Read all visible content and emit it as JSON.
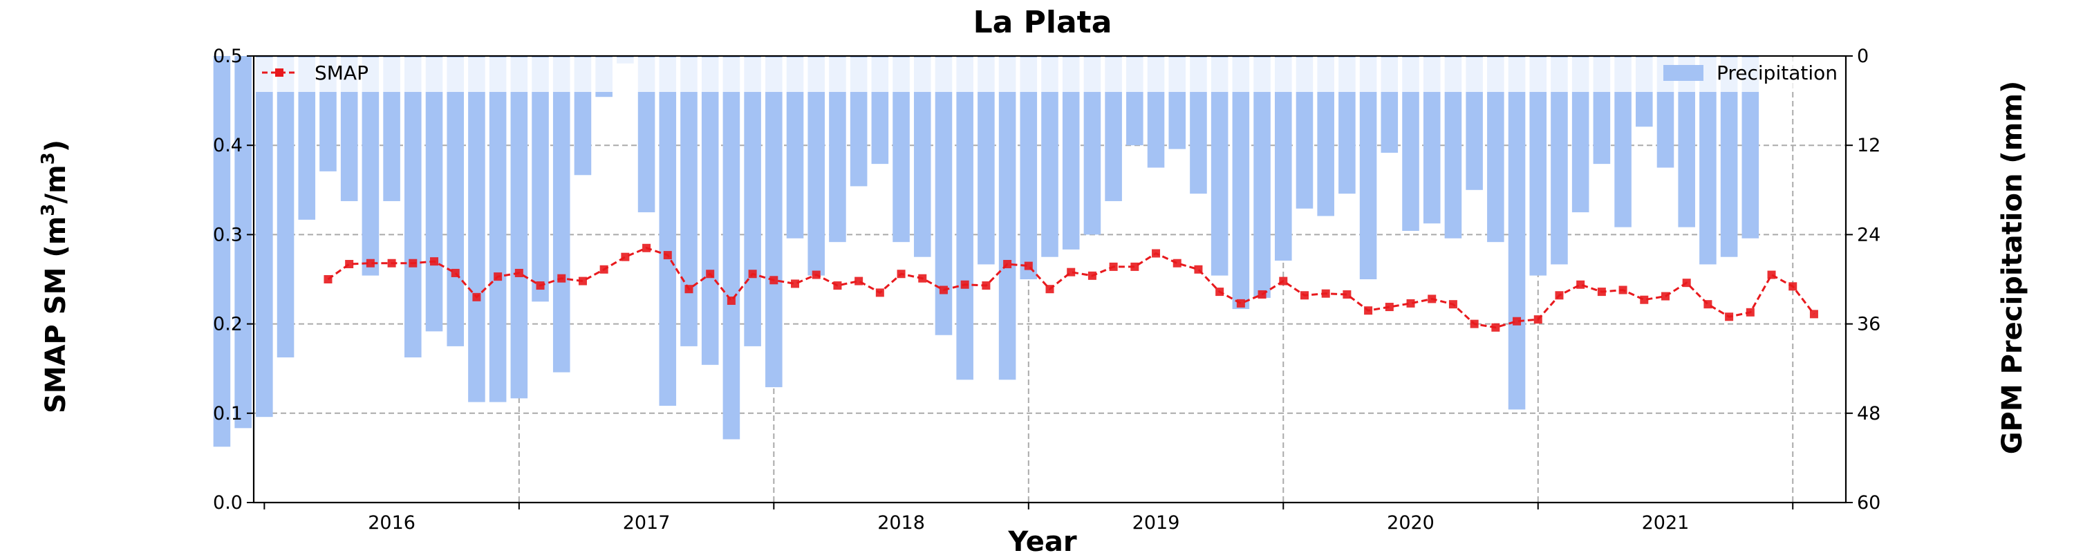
{
  "chart_data": {
    "type": "bar+line",
    "title": "La Plata",
    "xlabel": "Year",
    "ylabel_left_prefix": "SMAP SM (m",
    "ylabel_left_mid": "/m",
    "ylabel_left_suffix": ")",
    "ylabel_left_sup": "3",
    "ylabel_right": "GPM Precipitation (mm)",
    "year_labels": [
      "2016",
      "2017",
      "2018",
      "2019",
      "2020",
      "2021"
    ],
    "y_left_ticks": [
      "0.0",
      "0.1",
      "0.2",
      "0.3",
      "0.4",
      "0.5"
    ],
    "y_right_ticks": [
      "0",
      "12",
      "24",
      "36",
      "48",
      "60"
    ],
    "ylim_left": [
      0,
      0.5
    ],
    "ylim_right_inverted": [
      60,
      0
    ],
    "xlim_months": [
      -3.5,
      71.5
    ],
    "month_index_note": "0 = 2015-04",
    "grid": true,
    "legend": [
      {
        "label": "SMAP",
        "position": "top-left"
      },
      {
        "label": "Precipitation",
        "position": "top-right"
      }
    ],
    "colors": {
      "smap": "#e8191d",
      "precipitation": "#a4c2f4"
    },
    "series": [
      {
        "name": "Precipitation",
        "kind": "bar",
        "month_start": 0,
        "values": [
          52.5,
          50,
          48.5,
          40.5,
          22,
          15.5,
          19.5,
          29.5,
          19.5,
          40.5,
          37,
          39,
          46.5,
          46.5,
          46,
          33,
          42.5,
          16,
          5.5,
          1,
          21,
          47,
          39,
          41.5,
          51.5,
          39,
          44.5,
          24.5,
          29.5,
          25,
          17.5,
          14.5,
          25,
          27,
          37.5,
          43.5,
          28,
          43.5,
          30,
          27,
          26,
          24,
          19.5,
          12,
          15,
          12.5,
          18.5,
          29.5,
          34,
          32.5,
          27.5,
          20.5,
          21.5,
          18.5,
          30,
          13,
          23.5,
          22.5,
          24.5,
          18,
          25,
          47.5,
          29.5,
          28,
          21,
          14.5,
          23,
          9.5,
          15,
          23,
          28,
          27,
          24.5
        ],
        "month_offset": 5
      },
      {
        "name": "SMAP",
        "kind": "line",
        "month_start": 5,
        "values": [
          0.25,
          0.267,
          0.268,
          0.268,
          0.268,
          0.27,
          0.257,
          0.23,
          0.253,
          0.257,
          0.243,
          0.251,
          0.248,
          0.261,
          0.275,
          0.285,
          0.277,
          0.239,
          0.256,
          0.226,
          0.256,
          0.249,
          0.245,
          0.255,
          0.243,
          0.248,
          0.235,
          0.256,
          0.251,
          0.238,
          0.244,
          0.243,
          0.267,
          0.265,
          0.239,
          0.258,
          0.254,
          0.264,
          0.264,
          0.279,
          0.268,
          0.261,
          0.236,
          0.223,
          0.233,
          0.248,
          0.232,
          0.234,
          0.233,
          0.215,
          0.219,
          0.223,
          0.228,
          0.222,
          0.2,
          0.196,
          0.203,
          0.205,
          0.232,
          0.244,
          0.236,
          0.238,
          0.227,
          0.231,
          0.246,
          0.222,
          0.208,
          0.213,
          0.255,
          0.242,
          0.211
        ]
      }
    ]
  }
}
